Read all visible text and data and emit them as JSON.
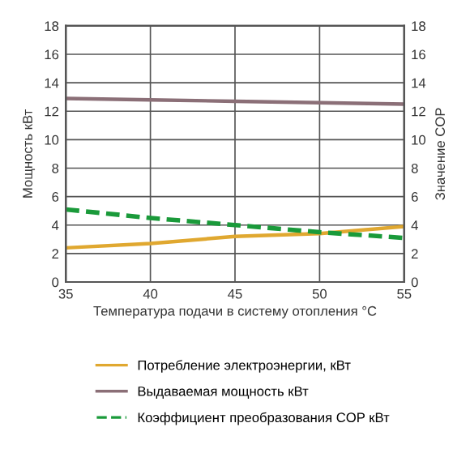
{
  "chart_data": {
    "type": "line",
    "xlabel": "Температура подачи в систему отопления °C",
    "ylabel": "Мощность кВт",
    "y2label": "Значение COP",
    "x": [
      35,
      40,
      45,
      50,
      55
    ],
    "xlim": [
      35,
      55
    ],
    "xticks": [
      35,
      40,
      45,
      50,
      55
    ],
    "ylim": [
      0,
      18
    ],
    "yticks": [
      0,
      2,
      4,
      6,
      8,
      10,
      12,
      14,
      16,
      18
    ],
    "y2lim": [
      0,
      18
    ],
    "y2ticks": [
      0,
      2,
      4,
      6,
      8,
      10,
      12,
      14,
      16,
      18
    ],
    "grid": true,
    "legend": "bottom",
    "marker": "none",
    "series": [
      {
        "name": "Потребление электроэнергии, кВт",
        "color": "#e0a830",
        "values": [
          2.4,
          2.7,
          3.2,
          3.4,
          3.9
        ],
        "line_style": "solid"
      },
      {
        "name": "Выдаваемая мощность кВт",
        "color": "#8b6f77",
        "values": [
          12.9,
          12.8,
          12.7,
          12.6,
          12.5
        ],
        "line_style": "solid"
      },
      {
        "name": "Коэффициент преобразования COP кВт",
        "color": "#1a9a3a",
        "values": [
          5.1,
          4.5,
          4.0,
          3.5,
          3.1
        ],
        "line_style": "dashed",
        "axis": "y2"
      }
    ]
  }
}
